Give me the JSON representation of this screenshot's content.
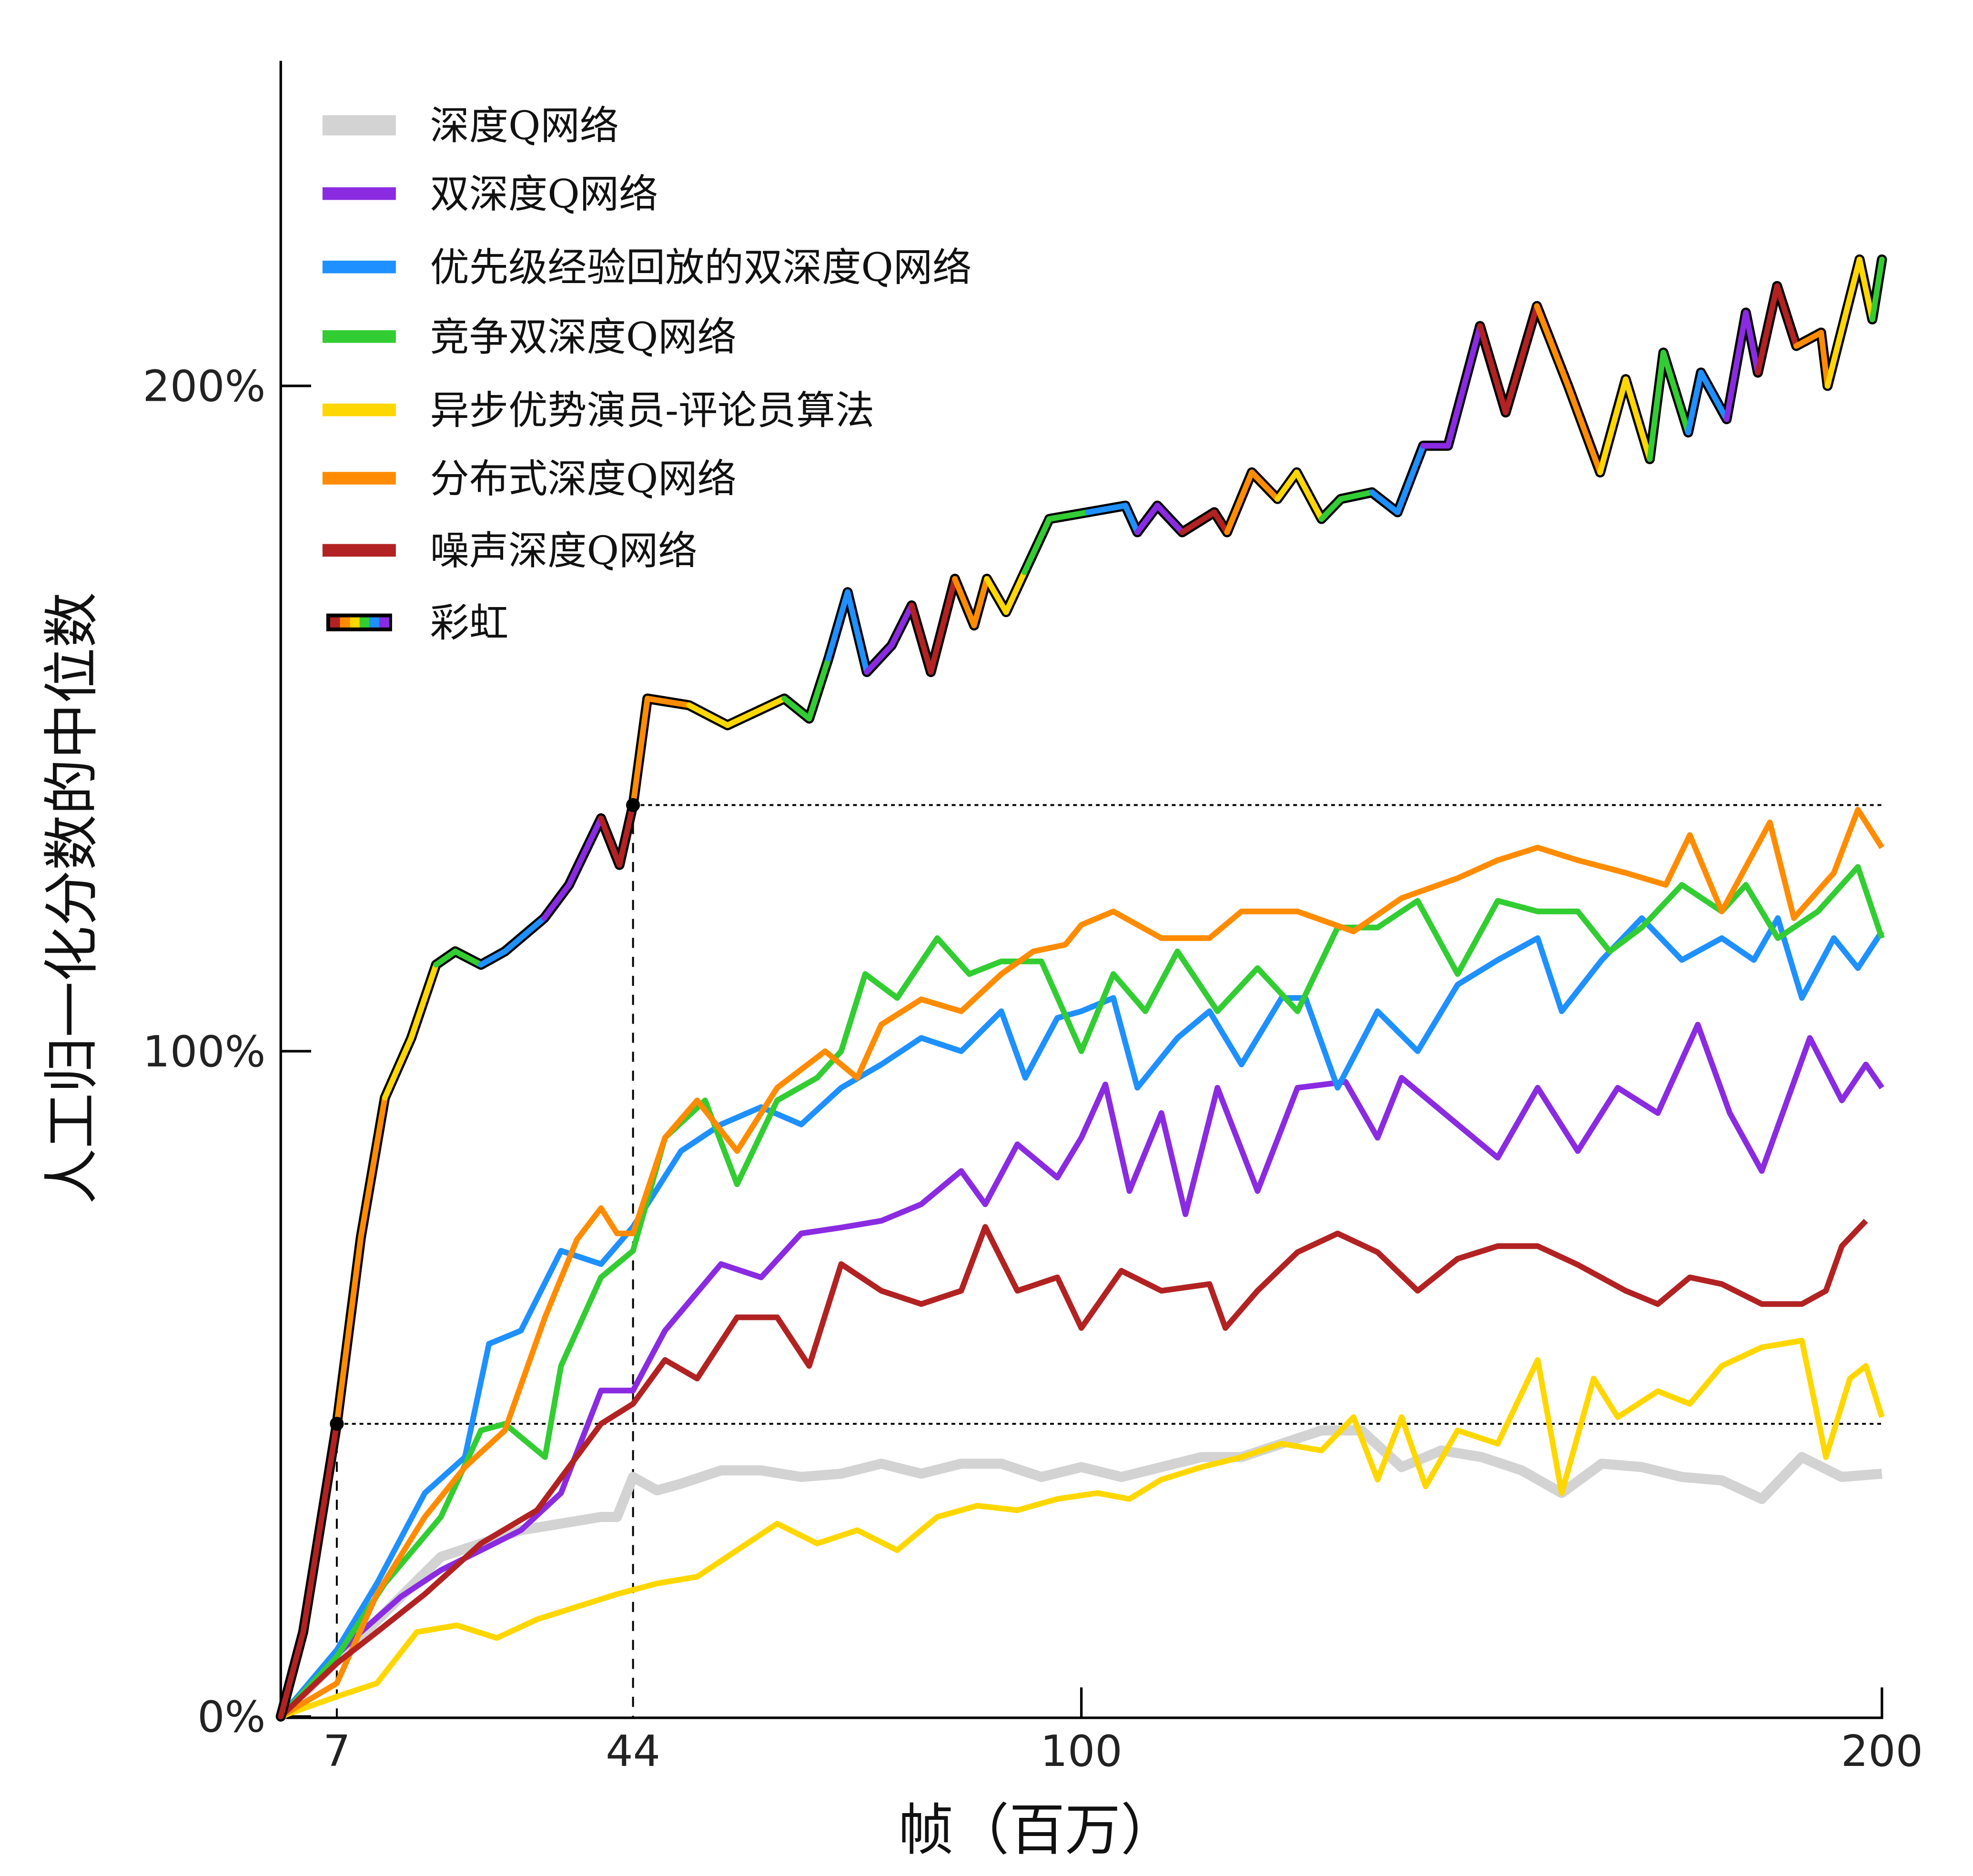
{
  "chart_data": {
    "type": "line",
    "xlabel": "帧（百万）",
    "ylabel": "人工归一化分数的中位数",
    "xlim": [
      0,
      200
    ],
    "ylim": [
      0,
      250
    ],
    "x_ticks": [
      7,
      44,
      100,
      200
    ],
    "x_tick_labels": [
      "7",
      "44",
      "100",
      "200"
    ],
    "y_ticks": [
      0,
      100,
      200
    ],
    "y_tick_labels": [
      "0%",
      "100%",
      "200%"
    ],
    "grid": false,
    "legend_position": "top-left",
    "reference_lines": [
      {
        "x": 7,
        "y": 44
      },
      {
        "x": 44,
        "y": 137
      }
    ],
    "series": [
      {
        "name": "深度Q网络",
        "color": "#d3d3d3",
        "x": [
          0,
          5,
          10,
          15,
          20,
          25,
          30,
          35,
          40,
          42,
          44,
          47,
          50,
          55,
          60,
          65,
          70,
          75,
          80,
          85,
          90,
          95,
          100,
          105,
          110,
          115,
          120,
          125,
          130,
          135,
          140,
          145,
          150,
          155,
          160,
          165,
          170,
          175,
          180,
          185,
          190,
          195,
          200
        ],
        "y": [
          0,
          6,
          12,
          18,
          24,
          26,
          28,
          29,
          30,
          30,
          36,
          34,
          35,
          37,
          37,
          36,
          36.5,
          38,
          36.5,
          38,
          38,
          36,
          37.5,
          36,
          37.5,
          39,
          39,
          41,
          43,
          43,
          37.5,
          40,
          39,
          37,
          33.6,
          38,
          37.5,
          36,
          35.5,
          32.7,
          39,
          36,
          36.5
        ]
      },
      {
        "name": "双深度Q网络",
        "color": "#8a2be2",
        "x": [
          0,
          5,
          10,
          15,
          20,
          25,
          30,
          35,
          40,
          44,
          48,
          55,
          60,
          65,
          70,
          75,
          80,
          85,
          88,
          92,
          97,
          100,
          103,
          106,
          110,
          113,
          117,
          122,
          127,
          133,
          137,
          140,
          147,
          152,
          157,
          162,
          167,
          172,
          177,
          181,
          185,
          191,
          195,
          198,
          200
        ],
        "y": [
          0,
          7,
          12.7,
          18,
          22,
          25,
          28,
          33.6,
          49,
          49,
          58,
          68,
          66,
          72.6,
          73.5,
          74.5,
          77,
          82,
          77,
          86,
          81,
          87,
          95,
          79,
          90.7,
          75.5,
          94.5,
          79,
          94.5,
          95.4,
          87,
          96,
          89,
          84,
          94.5,
          85,
          94.5,
          90.7,
          104,
          90.7,
          82,
          102,
          92.6,
          98,
          94.5
        ]
      },
      {
        "name": "优先级经验回放的双深度Q网络",
        "color": "#1e90ff",
        "x": [
          0,
          7,
          12,
          18,
          23,
          26,
          30,
          35,
          40,
          44,
          50,
          55,
          60,
          65,
          70,
          75,
          80,
          85,
          90,
          93,
          97,
          100,
          104,
          107,
          112,
          116,
          120,
          125,
          128,
          132,
          137,
          142,
          147,
          152,
          157,
          160,
          165,
          170,
          175,
          180,
          184,
          187,
          190,
          194,
          197,
          200
        ],
        "y": [
          0,
          10,
          20,
          33.6,
          39,
          56,
          58,
          70,
          68,
          73.6,
          85,
          89,
          91.6,
          89,
          94.5,
          98,
          102,
          100,
          106,
          96,
          105,
          106,
          108,
          94.5,
          102,
          106,
          98,
          108,
          108,
          94.5,
          106,
          100,
          110,
          113.7,
          117,
          106,
          113.7,
          120,
          113.7,
          117,
          113.7,
          120,
          108,
          117,
          112.5,
          118
        ]
      },
      {
        "name": "竞争双深度Q网络",
        "color": "#32cd32",
        "x": [
          0,
          7,
          13,
          20,
          25,
          28,
          33,
          35,
          40,
          44,
          48,
          53,
          57,
          62,
          67,
          70,
          73,
          77,
          82,
          86,
          90,
          95,
          100,
          104,
          108,
          112,
          117,
          122,
          127,
          132,
          137,
          142,
          147,
          152,
          157,
          162,
          166,
          170,
          175,
          180,
          183,
          187,
          192,
          197,
          200
        ],
        "y": [
          0,
          9,
          20,
          30,
          43,
          44,
          39,
          52.7,
          66,
          70,
          87,
          92.6,
          80,
          92.6,
          96,
          100,
          111.6,
          108,
          117,
          111.6,
          113.5,
          113.5,
          100,
          111.6,
          106,
          115,
          106,
          112.5,
          106,
          118.6,
          118.6,
          122.6,
          111.6,
          122.6,
          121,
          121,
          115,
          118.6,
          125,
          121,
          125,
          117,
          121,
          127.7,
          117
        ]
      },
      {
        "name": "异步优势演员-评论员算法",
        "color": "#ffd700",
        "x": [
          0,
          7,
          12,
          17,
          22,
          27,
          32,
          37,
          42,
          47,
          52,
          57,
          62,
          67,
          72,
          77,
          82,
          87,
          92,
          97,
          102,
          106,
          110,
          115,
          120,
          125,
          130,
          134,
          137,
          140,
          143,
          147,
          152,
          157,
          160,
          164,
          167,
          172,
          176,
          180,
          185,
          190,
          193,
          196,
          198,
          200
        ],
        "y": [
          0,
          3,
          5,
          12.7,
          13.7,
          11.8,
          14.6,
          16.5,
          18.4,
          20,
          21,
          25,
          29,
          26,
          28,
          25,
          30,
          31.7,
          31,
          32.7,
          33.6,
          32.7,
          35.6,
          37.5,
          39,
          41,
          40,
          45,
          35.6,
          45,
          34.6,
          43,
          41,
          53.6,
          33.6,
          50.8,
          45,
          48.9,
          47,
          52.7,
          55.5,
          56.5,
          39,
          50.8,
          52.7,
          45
        ]
      },
      {
        "name": "分布式深度Q网络",
        "color": "#ff8c00",
        "x": [
          0,
          7,
          12,
          18,
          23,
          28,
          33,
          37,
          40,
          42,
          44,
          48,
          52,
          57,
          62,
          68,
          72,
          75,
          80,
          85,
          90,
          94,
          98,
          100,
          104,
          110,
          116,
          120,
          127,
          134,
          140,
          147,
          152,
          157,
          162,
          168,
          173,
          176,
          180,
          186,
          189,
          194,
          197,
          200
        ],
        "y": [
          0,
          5,
          18.4,
          30,
          37.5,
          43,
          60,
          71.7,
          76.4,
          72.6,
          72.6,
          87,
          92.6,
          85,
          94.5,
          100,
          96,
          104,
          107.8,
          106,
          111.6,
          115,
          116,
          119,
          121,
          117,
          117,
          121,
          121,
          118,
          123,
          126,
          128.7,
          130.6,
          128.7,
          126.8,
          125,
          132.5,
          121,
          134.4,
          120,
          126.8,
          136.3,
          130.6
        ]
      },
      {
        "name": "噪声深度Q网络",
        "color": "#b22222",
        "x": [
          0,
          7,
          12,
          18,
          25,
          32,
          40,
          44,
          48,
          52,
          57,
          62,
          66,
          70,
          75,
          80,
          85,
          88,
          92,
          97,
          100,
          105,
          110,
          116,
          118,
          122,
          127,
          132,
          137,
          142,
          147,
          152,
          157,
          162,
          168,
          172,
          176,
          180,
          185,
          190,
          193,
          195,
          198
        ],
        "y": [
          0,
          8,
          12.7,
          18.4,
          26,
          31,
          44,
          47,
          53.6,
          50.8,
          60,
          60,
          52.7,
          68,
          64,
          62,
          64,
          73.6,
          64,
          66,
          58.4,
          67,
          64,
          65,
          58.4,
          64,
          69.8,
          72.6,
          69.8,
          64,
          68.8,
          70.7,
          70.7,
          67.9,
          64,
          62,
          66,
          65,
          62,
          62,
          64,
          70.7,
          74.5
        ]
      },
      {
        "name": "彩虹",
        "color": "rainbow",
        "x": [
          0,
          2.8,
          7,
          10,
          13,
          16.3,
          19.4,
          21.8,
          25,
          28,
          32.9,
          36,
          40,
          42.3,
          44,
          45.8,
          51,
          55.8,
          62.9,
          66,
          68.4,
          70.8,
          73.2,
          76.3,
          78.8,
          81.2,
          84.2,
          86.6,
          88.2,
          90.6,
          92.9,
          96,
          100.8,
          105.5,
          107,
          109.5,
          112.6,
          116.6,
          118.2,
          121.3,
          124.5,
          126.9,
          130,
          132.4,
          136.3,
          139.5,
          142.7,
          145.8,
          149.8,
          153,
          156.9,
          160.8,
          164.8,
          168,
          171,
          172.7,
          175.8,
          177.4,
          180.6,
          183,
          184.5,
          186.9,
          189.3,
          192.4,
          193.2,
          197.2,
          198.8,
          200
        ],
        "y": [
          0,
          12.7,
          44,
          72,
          93,
          102,
          113,
          115,
          113,
          115,
          120,
          125,
          135,
          128,
          137,
          153,
          152,
          149,
          153,
          150,
          159,
          169,
          157,
          161,
          167,
          157,
          171,
          164,
          171,
          166,
          172,
          180,
          181,
          182,
          178,
          182,
          178,
          181,
          178,
          187,
          183,
          187,
          180,
          183,
          184,
          181,
          191,
          191,
          209,
          196,
          212,
          200,
          187,
          201,
          189,
          205,
          193,
          202,
          195,
          211,
          202,
          215,
          206,
          208,
          200,
          219,
          210,
          219
        ]
      }
    ],
    "rainbow_segment_colors": [
      "#b22222",
      "#ff8c00",
      "#ffd700",
      "#32cd32",
      "#1e90ff",
      "#8a2be2"
    ]
  }
}
